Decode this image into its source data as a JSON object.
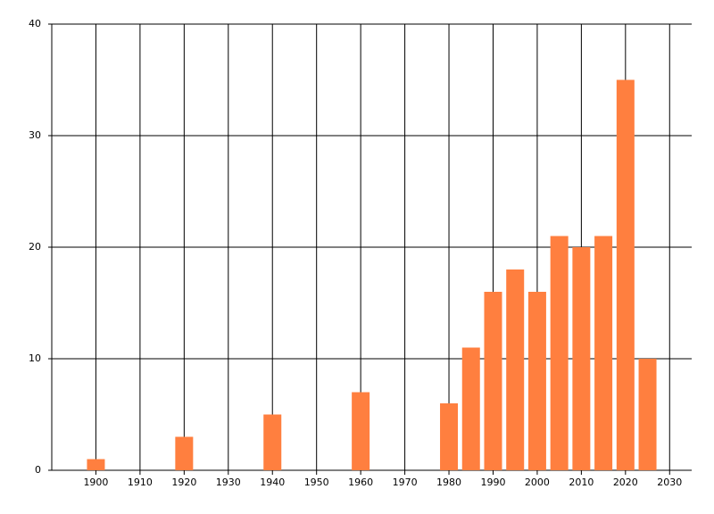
{
  "chart_data": {
    "type": "bar",
    "x": [
      1900,
      1920,
      1940,
      1960,
      1980,
      1985,
      1990,
      1995,
      2000,
      2005,
      2010,
      2015,
      2020,
      2025
    ],
    "values": [
      1,
      3,
      5,
      7,
      6,
      11,
      16,
      18,
      16,
      21,
      20,
      21,
      35,
      10
    ],
    "color": "#ff7f3f",
    "xlim": [
      1890,
      2035
    ],
    "xticks": [
      1900,
      1910,
      1920,
      1930,
      1940,
      1950,
      1960,
      1970,
      1980,
      1990,
      2000,
      2010,
      2020,
      2030
    ],
    "ylim": [
      0,
      40
    ],
    "yticks": [
      0,
      10,
      20,
      30,
      40
    ],
    "grid": true
  }
}
